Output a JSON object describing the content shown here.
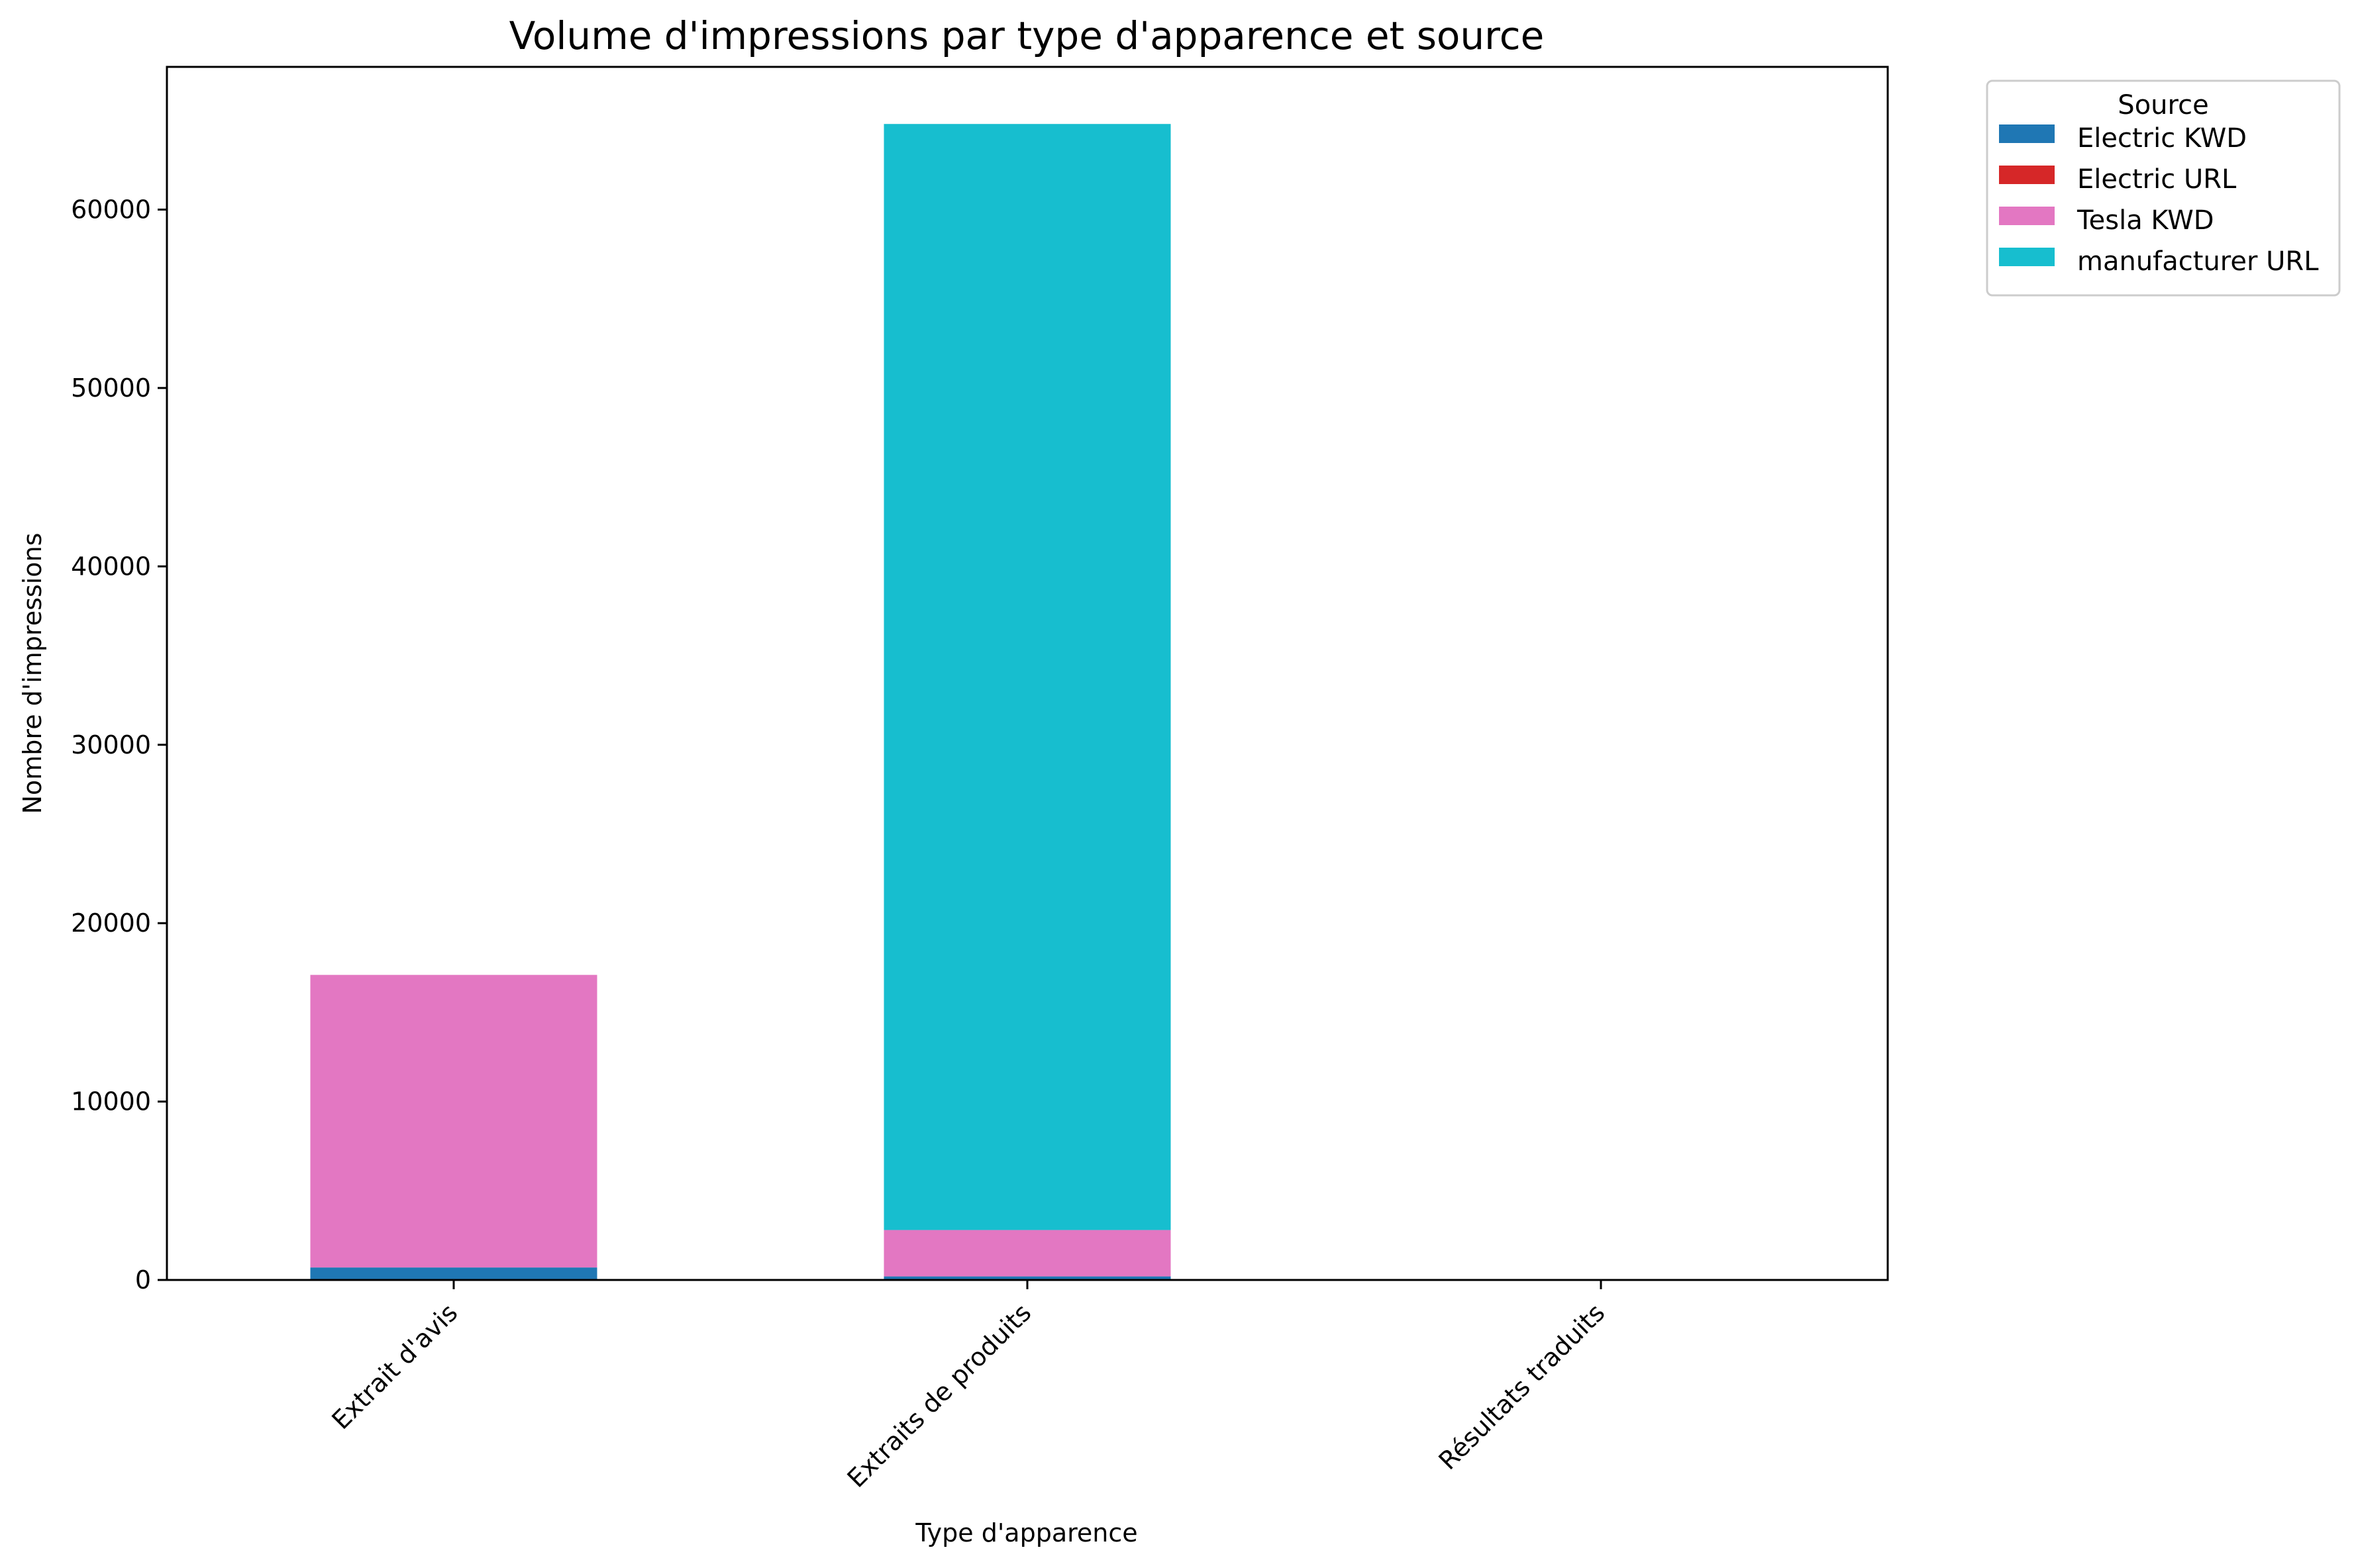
{
  "chart_data": {
    "type": "bar",
    "stacked": true,
    "title": "Volume d'impressions par type d'apparence et source",
    "xlabel": "Type d'apparence",
    "ylabel": "Nombre d'impressions",
    "categories": [
      "Extrait d'avis",
      "Extraits de produits",
      "Résultats traduits"
    ],
    "ylim": [
      0,
      68000
    ],
    "yticks": [
      0,
      10000,
      20000,
      30000,
      40000,
      50000,
      60000
    ],
    "grid": false,
    "legend": {
      "title": "Source",
      "placement": "outside-top-right"
    },
    "series": [
      {
        "name": "Electric KWD",
        "color": "#1f77b4",
        "values": [
          700,
          200,
          0
        ]
      },
      {
        "name": "Electric URL",
        "color": "#d62728",
        "values": [
          0,
          0,
          0
        ]
      },
      {
        "name": "Tesla KWD",
        "color": "#e377c2",
        "values": [
          16400,
          2600,
          0
        ]
      },
      {
        "name": "manufacturer URL",
        "color": "#17becf",
        "values": [
          0,
          62000,
          0
        ]
      }
    ]
  }
}
